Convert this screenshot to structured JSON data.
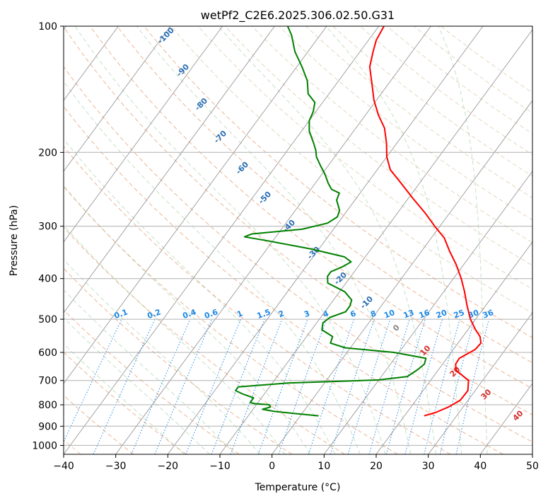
{
  "chart_data": {
    "type": "line",
    "subtype": "skew-t log-p diagram",
    "title": "wetPf2_C2E6.2025.306.02.50.G31",
    "xlabel": "Temperature (°C)",
    "ylabel": "Pressure (hPa)",
    "xlim": [
      -40,
      50
    ],
    "ylim": [
      1050,
      100
    ],
    "y_scale": "log",
    "x_ticks": [
      -40,
      -30,
      -20,
      -10,
      0,
      10,
      20,
      30,
      40,
      50
    ],
    "y_ticks": [
      100,
      200,
      300,
      400,
      500,
      600,
      700,
      800,
      900,
      1000
    ],
    "grid": true,
    "series": [
      {
        "role": "temperature",
        "color": "#ff0000",
        "points": [
          [
            23.8,
            850
          ],
          [
            25.5,
            835
          ],
          [
            27.2,
            810
          ],
          [
            28.5,
            780
          ],
          [
            28.6,
            740
          ],
          [
            27.3,
            700
          ],
          [
            24.5,
            672
          ],
          [
            23.5,
            662
          ],
          [
            22.5,
            640
          ],
          [
            22.4,
            620
          ],
          [
            24.2,
            590
          ],
          [
            24.4,
            570
          ],
          [
            23.3,
            550
          ],
          [
            21.5,
            530
          ],
          [
            19.0,
            500
          ],
          [
            16.5,
            465
          ],
          [
            14.0,
            430
          ],
          [
            11.5,
            400
          ],
          [
            8.5,
            370
          ],
          [
            5.5,
            345
          ],
          [
            2.5,
            320
          ],
          [
            -1.0,
            300
          ],
          [
            -4.5,
            280
          ],
          [
            -9.0,
            258
          ],
          [
            -13.5,
            237
          ],
          [
            -17.5,
            220
          ],
          [
            -20.0,
            205
          ],
          [
            -22.0,
            190
          ],
          [
            -24.5,
            175
          ],
          [
            -27.5,
            163
          ],
          [
            -30.5,
            150
          ],
          [
            -33.0,
            138
          ],
          [
            -36.0,
            125
          ],
          [
            -37.5,
            115
          ],
          [
            -38.5,
            108
          ],
          [
            -39.0,
            100
          ]
        ]
      },
      {
        "role": "dewpoint",
        "color": "#008000",
        "points": [
          [
            3.5,
            850
          ],
          [
            -1.0,
            840
          ],
          [
            -5.5,
            830
          ],
          [
            -8.2,
            820
          ],
          [
            -7.0,
            810
          ],
          [
            -7.5,
            800
          ],
          [
            -10.5,
            795
          ],
          [
            -11.5,
            790
          ],
          [
            -11.5,
            770
          ],
          [
            -14.0,
            755
          ],
          [
            -16.0,
            740
          ],
          [
            -16.0,
            725
          ],
          [
            -7.0,
            710
          ],
          [
            10.0,
            698
          ],
          [
            15.0,
            685
          ],
          [
            16.0,
            660
          ],
          [
            16.5,
            640
          ],
          [
            16.0,
            620
          ],
          [
            9.0,
            600
          ],
          [
            -1.0,
            585
          ],
          [
            -4.5,
            570
          ],
          [
            -5.0,
            550
          ],
          [
            -8.0,
            530
          ],
          [
            -8.8,
            510
          ],
          [
            -8.2,
            495
          ],
          [
            -6.0,
            480
          ],
          [
            -6.0,
            465
          ],
          [
            -6.5,
            450
          ],
          [
            -9.0,
            430
          ],
          [
            -13.5,
            410
          ],
          [
            -14.5,
            395
          ],
          [
            -14.5,
            385
          ],
          [
            -13.0,
            375
          ],
          [
            -12.0,
            365
          ],
          [
            -14.0,
            355
          ],
          [
            -21.5,
            340
          ],
          [
            -31.0,
            325
          ],
          [
            -36.0,
            318
          ],
          [
            -35.0,
            313
          ],
          [
            -26.0,
            305
          ],
          [
            -22.0,
            295
          ],
          [
            -21.0,
            285
          ],
          [
            -21.5,
            275
          ],
          [
            -23.5,
            260
          ],
          [
            -24.0,
            250
          ],
          [
            -26.0,
            245
          ],
          [
            -27.5,
            237
          ],
          [
            -29.5,
            225
          ],
          [
            -31.5,
            215
          ],
          [
            -33.5,
            205
          ],
          [
            -34.5,
            198
          ],
          [
            -36.0,
            190
          ],
          [
            -38.5,
            178
          ],
          [
            -40.0,
            168
          ],
          [
            -40.5,
            160
          ],
          [
            -41.5,
            152
          ],
          [
            -44.0,
            145
          ],
          [
            -46.0,
            135
          ],
          [
            -49.0,
            125
          ],
          [
            -52.5,
            115
          ],
          [
            -55.5,
            105
          ],
          [
            -57.5,
            100
          ]
        ]
      }
    ],
    "reference_lines": {
      "isotherm_labels_blue": [
        "-100",
        "-90",
        "-80",
        "-70",
        "-60",
        "-50",
        "-40",
        "-30",
        "-20",
        "-10"
      ],
      "isotherm_label_gray": "0",
      "isotherm_labels_red": [
        "10",
        "20",
        "30",
        "40"
      ],
      "mixing_ratio_labels": [
        "0.1",
        "0.2",
        "0.4",
        "0.6",
        "1",
        "1.5",
        "2",
        "3",
        "4",
        "6",
        "8",
        "10",
        "13",
        "16",
        "20",
        "25",
        "30",
        "36"
      ]
    }
  }
}
